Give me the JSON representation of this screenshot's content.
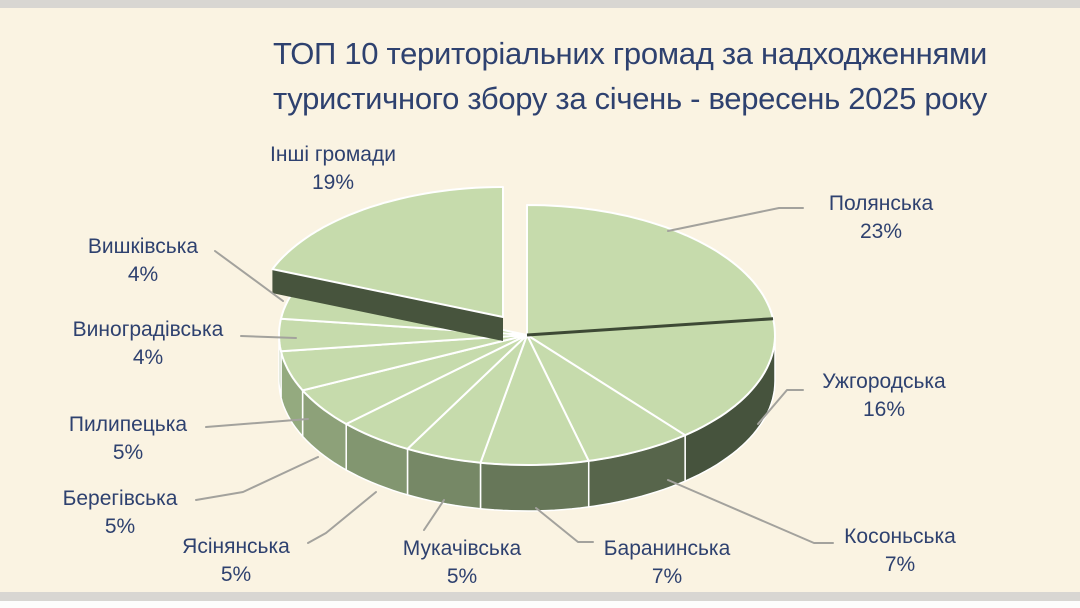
{
  "page": {
    "background_color": "#faf3e2",
    "edge_strip_color": "#d8d6d2"
  },
  "title": {
    "line1": "ТОП 10 територіальних громад за надходженнями",
    "line2": "туристичного збору за січень - вересень 2025 року",
    "color": "#2e416f"
  },
  "chart_data": {
    "type": "pie",
    "style": "3d-exploded",
    "title": "ТОП 10 територіальних громад за надходженнями туристичного збору за січень - вересень 2025 року",
    "unit": "%",
    "legend": "none",
    "label_position": "outside-with-leader-lines",
    "slices": [
      {
        "label": "Полянська",
        "value": 23,
        "value_label": "23%"
      },
      {
        "label": "Ужгородська",
        "value": 16,
        "value_label": "16%"
      },
      {
        "label": "Косоньська",
        "value": 7,
        "value_label": "7%"
      },
      {
        "label": "Баранинська",
        "value": 7,
        "value_label": "7%"
      },
      {
        "label": "Мукачівська",
        "value": 5,
        "value_label": "5%"
      },
      {
        "label": "Ясінянська",
        "value": 5,
        "value_label": "5%"
      },
      {
        "label": "Берегівська",
        "value": 5,
        "value_label": "5%"
      },
      {
        "label": "Пилипецька",
        "value": 5,
        "value_label": "5%"
      },
      {
        "label": "Виноградівська",
        "value": 4,
        "value_label": "4%"
      },
      {
        "label": "Вишківська",
        "value": 4,
        "value_label": "4%"
      },
      {
        "label": "Інші громади",
        "value": 19,
        "value_label": "19%",
        "exploded": true
      }
    ],
    "colors": {
      "slice_top": "#c6dbac",
      "rim_light": "#97ad82",
      "rim_dark": "#434f3a",
      "exploded_edge": "#47543d",
      "slice_separator": "#ffffff",
      "dark_boundary": "#3d4935",
      "leader_line": "#a3a29d",
      "label_text": "#2e416f"
    }
  }
}
